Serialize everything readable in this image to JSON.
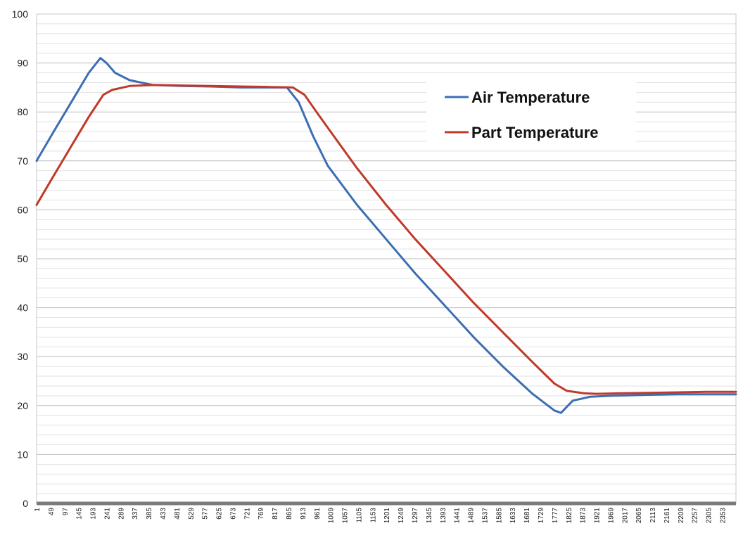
{
  "chart_data": {
    "type": "line",
    "title": "",
    "xlabel": "",
    "ylabel": "",
    "ylim": [
      0,
      100
    ],
    "yticks": [
      0,
      10,
      20,
      30,
      40,
      50,
      60,
      70,
      80,
      90,
      100
    ],
    "xlim": [
      1,
      2400
    ],
    "xticks": [
      1,
      49,
      97,
      145,
      193,
      241,
      289,
      337,
      385,
      433,
      481,
      529,
      577,
      625,
      673,
      721,
      769,
      817,
      865,
      913,
      961,
      1009,
      1057,
      1105,
      1153,
      1201,
      1249,
      1297,
      1345,
      1393,
      1441,
      1489,
      1537,
      1585,
      1633,
      1681,
      1729,
      1777,
      1825,
      1873,
      1921,
      1969,
      2017,
      2065,
      2113,
      2161,
      2209,
      2257,
      2305,
      2353
    ],
    "grid": true,
    "legend_position": "top-right",
    "series": [
      {
        "name": "Air Temperature",
        "color": "#3c6eb4",
        "points": [
          [
            1,
            70
          ],
          [
            60,
            76
          ],
          [
            120,
            82
          ],
          [
            180,
            88
          ],
          [
            220,
            91
          ],
          [
            241,
            90
          ],
          [
            270,
            88
          ],
          [
            320,
            86.5
          ],
          [
            400,
            85.5
          ],
          [
            500,
            85.3
          ],
          [
            600,
            85.2
          ],
          [
            700,
            85
          ],
          [
            800,
            85
          ],
          [
            860,
            85
          ],
          [
            900,
            82
          ],
          [
            950,
            75
          ],
          [
            1000,
            69
          ],
          [
            1100,
            61
          ],
          [
            1200,
            54
          ],
          [
            1300,
            47
          ],
          [
            1400,
            40.5
          ],
          [
            1500,
            34
          ],
          [
            1600,
            28
          ],
          [
            1700,
            22.5
          ],
          [
            1777,
            19
          ],
          [
            1800,
            18.5
          ],
          [
            1840,
            21
          ],
          [
            1900,
            21.8
          ],
          [
            1969,
            22
          ],
          [
            2100,
            22.2
          ],
          [
            2200,
            22.3
          ],
          [
            2300,
            22.3
          ],
          [
            2400,
            22.3
          ]
        ]
      },
      {
        "name": "Part Temperature",
        "color": "#c0392b",
        "points": [
          [
            1,
            61
          ],
          [
            60,
            67
          ],
          [
            120,
            73
          ],
          [
            180,
            79
          ],
          [
            230,
            83.5
          ],
          [
            260,
            84.5
          ],
          [
            320,
            85.3
          ],
          [
            400,
            85.5
          ],
          [
            500,
            85.4
          ],
          [
            600,
            85.3
          ],
          [
            700,
            85.2
          ],
          [
            800,
            85.1
          ],
          [
            880,
            85
          ],
          [
            920,
            83.5
          ],
          [
            961,
            80
          ],
          [
            1009,
            76
          ],
          [
            1100,
            68.5
          ],
          [
            1200,
            61
          ],
          [
            1300,
            54
          ],
          [
            1400,
            47.5
          ],
          [
            1500,
            41
          ],
          [
            1600,
            35
          ],
          [
            1700,
            29
          ],
          [
            1777,
            24.5
          ],
          [
            1820,
            23
          ],
          [
            1880,
            22.5
          ],
          [
            1921,
            22.4
          ],
          [
            2000,
            22.5
          ],
          [
            2100,
            22.6
          ],
          [
            2200,
            22.7
          ],
          [
            2300,
            22.8
          ],
          [
            2400,
            22.8
          ]
        ]
      }
    ]
  }
}
